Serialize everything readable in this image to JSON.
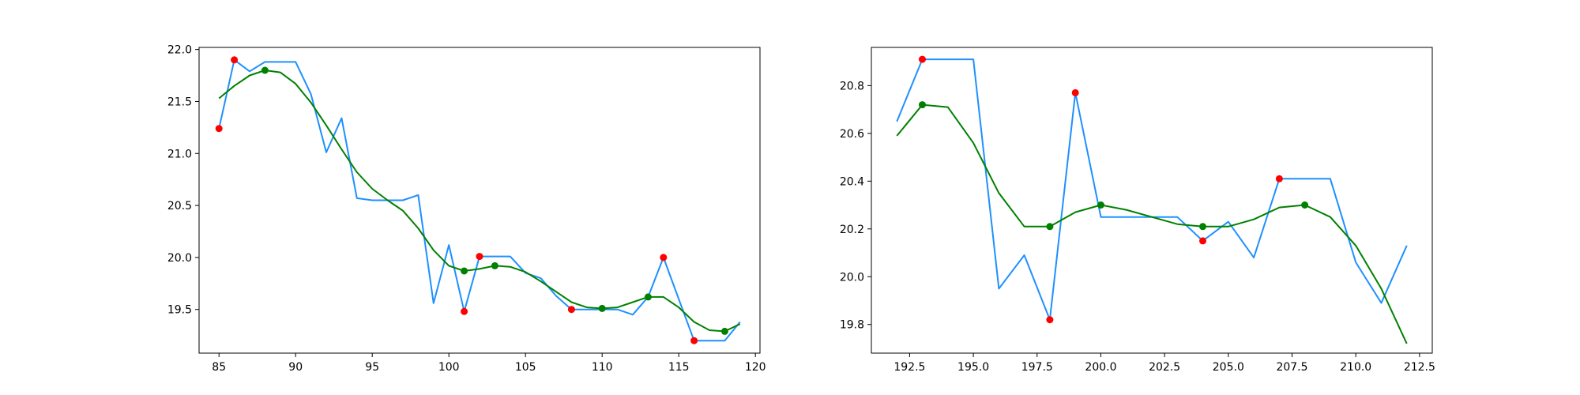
{
  "colors": {
    "raw_line": "#1e90ff",
    "smooth_line": "#008000",
    "red_points": "#ff0000",
    "green_points": "#008000",
    "axes": "#000000",
    "background": "#ffffff"
  },
  "chart_data": [
    {
      "type": "line",
      "title": "",
      "xlabel": "",
      "ylabel": "",
      "xlim": [
        83.7,
        120.3
      ],
      "ylim": [
        19.08,
        22.02
      ],
      "grid": false,
      "legend": "none",
      "xticks": [
        85,
        90,
        95,
        100,
        105,
        110,
        115,
        120
      ],
      "xtick_labels": [
        "85",
        "90",
        "95",
        "100",
        "105",
        "110",
        "115",
        "120"
      ],
      "yticks": [
        19.5,
        20.0,
        20.5,
        21.0,
        21.5,
        22.0
      ],
      "ytick_labels": [
        "19.5",
        "20.0",
        "20.5",
        "21.0",
        "21.5",
        "22.0"
      ],
      "series": [
        {
          "kind": "line",
          "color": "#1e90ff",
          "x": [
            85,
            86,
            87,
            88,
            89,
            90,
            91,
            92,
            93,
            94,
            95,
            96,
            97,
            98,
            99,
            100,
            101,
            102,
            103,
            104,
            105,
            106,
            107,
            108,
            109,
            110,
            111,
            112,
            113,
            114,
            115,
            116,
            117,
            118,
            119
          ],
          "y": [
            21.24,
            21.9,
            21.79,
            21.88,
            21.88,
            21.88,
            21.57,
            21.01,
            21.34,
            20.57,
            20.55,
            20.55,
            20.55,
            20.6,
            19.56,
            20.12,
            19.48,
            20.01,
            20.01,
            20.01,
            19.85,
            19.8,
            19.63,
            19.5,
            19.5,
            19.5,
            19.5,
            19.45,
            19.62,
            20.0,
            19.6,
            19.2,
            19.2,
            19.2,
            19.38
          ]
        },
        {
          "kind": "line",
          "color": "#008000",
          "x": [
            85,
            86,
            87,
            88,
            89,
            90,
            91,
            92,
            93,
            94,
            95,
            96,
            97,
            98,
            99,
            100,
            101,
            102,
            103,
            104,
            105,
            106,
            107,
            108,
            109,
            110,
            111,
            112,
            113,
            114,
            115,
            116,
            117,
            118,
            119
          ],
          "y": [
            21.53,
            21.65,
            21.75,
            21.8,
            21.78,
            21.67,
            21.49,
            21.27,
            21.04,
            20.82,
            20.66,
            20.55,
            20.45,
            20.28,
            20.07,
            19.92,
            19.87,
            19.89,
            19.92,
            19.91,
            19.86,
            19.77,
            19.67,
            19.57,
            19.52,
            19.51,
            19.52,
            19.57,
            19.62,
            19.62,
            19.52,
            19.38,
            19.3,
            19.29,
            19.36
          ]
        },
        {
          "kind": "scatter",
          "color": "#ff0000",
          "x": [
            85,
            86,
            101,
            102,
            108,
            114,
            116
          ],
          "y": [
            21.24,
            21.9,
            19.48,
            20.01,
            19.5,
            20.0,
            19.2
          ]
        },
        {
          "kind": "scatter",
          "color": "#008000",
          "x": [
            88,
            101,
            103,
            110,
            113,
            118
          ],
          "y": [
            21.8,
            19.87,
            19.92,
            19.51,
            19.62,
            19.29
          ]
        }
      ]
    },
    {
      "type": "line",
      "title": "",
      "xlabel": "",
      "ylabel": "",
      "xlim": [
        191.0,
        213.0
      ],
      "ylim": [
        19.68,
        20.96
      ],
      "grid": false,
      "legend": "none",
      "xticks": [
        192.5,
        195.0,
        197.5,
        200.0,
        202.5,
        205.0,
        207.5,
        210.0,
        212.5
      ],
      "xtick_labels": [
        "192.5",
        "195.0",
        "197.5",
        "200.0",
        "202.5",
        "205.0",
        "207.5",
        "210.0",
        "212.5"
      ],
      "yticks": [
        19.8,
        20.0,
        20.2,
        20.4,
        20.6,
        20.8
      ],
      "ytick_labels": [
        "19.8",
        "20.0",
        "20.2",
        "20.4",
        "20.6",
        "20.8"
      ],
      "series": [
        {
          "kind": "line",
          "color": "#1e90ff",
          "x": [
            192,
            193,
            194,
            195,
            196,
            197,
            198,
            199,
            200,
            201,
            202,
            203,
            204,
            205,
            206,
            207,
            208,
            209,
            210,
            211,
            212
          ],
          "y": [
            20.65,
            20.91,
            20.91,
            20.91,
            19.95,
            20.09,
            19.82,
            20.77,
            20.25,
            20.25,
            20.25,
            20.25,
            20.15,
            20.23,
            20.08,
            20.41,
            20.41,
            20.41,
            20.06,
            19.89,
            20.13
          ]
        },
        {
          "kind": "line",
          "color": "#008000",
          "x": [
            192,
            193,
            194,
            195,
            196,
            197,
            198,
            199,
            200,
            201,
            202,
            203,
            204,
            205,
            206,
            207,
            208,
            209,
            210,
            211,
            212
          ],
          "y": [
            20.59,
            20.72,
            20.71,
            20.56,
            20.35,
            20.21,
            20.21,
            20.27,
            20.3,
            20.28,
            20.25,
            20.22,
            20.21,
            20.21,
            20.24,
            20.29,
            20.3,
            20.25,
            20.13,
            19.95,
            19.72
          ]
        },
        {
          "kind": "scatter",
          "color": "#ff0000",
          "x": [
            193,
            198,
            199,
            204,
            207
          ],
          "y": [
            20.91,
            19.82,
            20.77,
            20.15,
            20.41
          ]
        },
        {
          "kind": "scatter",
          "color": "#008000",
          "x": [
            193,
            198,
            200,
            204,
            208
          ],
          "y": [
            20.72,
            20.21,
            20.3,
            20.21,
            20.3
          ]
        }
      ]
    }
  ]
}
